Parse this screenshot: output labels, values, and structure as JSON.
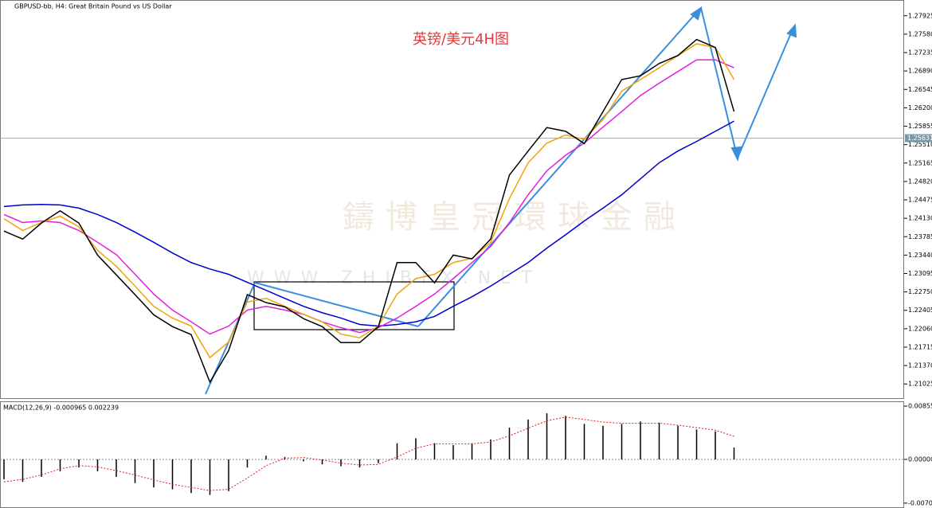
{
  "chart_data": [
    {
      "type": "line",
      "title": "GBPUSD-bb, H4:  Great Britain Pound vs US Dollar",
      "annotation": "英镑/美元4H图",
      "watermark": "鑄博皇冠環球金融",
      "watermark_url": "WWW.ZHIBFX.NET",
      "last_price": 1.25631,
      "categories": [
        null,
        null,
        null,
        null,
        null,
        null,
        null,
        null,
        null,
        null,
        null,
        null,
        null,
        null,
        null,
        null,
        null,
        null,
        null,
        null,
        null,
        null,
        null,
        null,
        null,
        null,
        null,
        null,
        null,
        null,
        null,
        null,
        null,
        null,
        null,
        null,
        null,
        null,
        null,
        null
      ],
      "series": [
        {
          "color": "#0000cc",
          "values": [
            1.2435,
            1.2438,
            1.2439,
            1.2438,
            1.2432,
            1.242,
            1.2405,
            1.2387,
            1.2368,
            1.2348,
            1.233,
            1.2318,
            1.2308,
            1.2293,
            1.2278,
            1.2263,
            1.2248,
            1.2236,
            1.2226,
            1.2214,
            1.2211,
            1.2214,
            1.2219,
            1.2229,
            1.2248,
            1.2266,
            1.2286,
            1.2308,
            1.233,
            1.2357,
            1.2382,
            1.2408,
            1.2432,
            1.2457,
            1.2487,
            1.2517,
            1.2539,
            1.2557,
            1.2576,
            1.2595
          ]
        },
        {
          "color": "#e020e0",
          "values": [
            1.242,
            1.2405,
            1.2408,
            1.2405,
            1.239,
            1.2368,
            1.2345,
            1.2308,
            1.2271,
            1.2241,
            1.2219,
            1.2196,
            1.2211,
            1.2241,
            1.2248,
            1.2241,
            1.2233,
            1.2219,
            1.2208,
            1.2199,
            1.2208,
            1.2226,
            1.2248,
            1.2271,
            1.23,
            1.233,
            1.236,
            1.2405,
            1.2457,
            1.2502,
            1.2531,
            1.2554,
            1.2584,
            1.2613,
            1.2643,
            1.2666,
            1.2688,
            1.271,
            1.271,
            1.2695
          ]
        },
        {
          "color": "#f0a30a",
          "values": [
            1.2412,
            1.239,
            1.2405,
            1.2417,
            1.2397,
            1.2353,
            1.2323,
            1.2286,
            1.2248,
            1.2226,
            1.2211,
            1.2152,
            1.2181,
            1.2256,
            1.2263,
            1.2248,
            1.2233,
            1.2219,
            1.2196,
            1.2189,
            1.2211,
            1.2271,
            1.23,
            1.2308,
            1.233,
            1.2338,
            1.2368,
            1.245,
            1.2517,
            1.2554,
            1.2569,
            1.2561,
            1.2598,
            1.2651,
            1.2673,
            1.2695,
            1.2718,
            1.274,
            1.2733,
            1.2673
          ]
        },
        {
          "color": "#000000",
          "values": [
            1.2389,
            1.2374,
            1.2404,
            1.2427,
            1.2404,
            1.2344,
            1.2307,
            1.227,
            1.2232,
            1.221,
            1.2195,
            1.2106,
            1.2165,
            1.227,
            1.2255,
            1.2247,
            1.2225,
            1.221,
            1.218,
            1.218,
            1.221,
            1.233,
            1.233,
            1.2292,
            1.2344,
            1.2337,
            1.2374,
            1.2494,
            1.2539,
            1.2583,
            1.2576,
            1.2553,
            1.2613,
            1.2673,
            1.268,
            1.2703,
            1.2718,
            1.2748,
            1.2733,
            1.2613
          ]
        }
      ],
      "ylim": [
        1.2076,
        1.2822
      ],
      "yticks": [
        1.27925,
        {
          "value": 1.2758,
          "label": "1.27580"
        },
        1.27235,
        {
          "value": 1.2689,
          "label": "1.26890"
        },
        1.26545,
        {
          "value": 1.262,
          "label": "1.26200"
        },
        1.25855,
        {
          "value": 1.2551,
          "label": "1.25510"
        },
        1.25165,
        {
          "value": 1.2482,
          "label": "1.24820"
        },
        1.24475,
        {
          "value": 1.2413,
          "label": "1.24130"
        },
        1.23785,
        {
          "value": 1.2344,
          "label": "1.23440"
        },
        1.23095,
        {
          "value": 1.2275,
          "label": "1.22750"
        },
        1.22405,
        {
          "value": 1.2206,
          "label": "1.22060"
        },
        1.21715,
        {
          "value": 1.2137,
          "label": "1.21370"
        },
        1.21025
      ]
    },
    {
      "type": "bar",
      "title": "MACD(12,26,9) -0.000965 0.002239",
      "series": [
        {
          "color": "#000000",
          "values": [
            -0.0032,
            -0.0036,
            -0.0028,
            -0.0019,
            -0.0013,
            -0.0019,
            -0.0028,
            -0.0038,
            -0.0045,
            -0.0048,
            -0.0054,
            -0.0057,
            -0.0051,
            -0.0013,
            0.0006,
            0.0004,
            -0.0003,
            -0.0008,
            -0.0011,
            -0.0013,
            -0.0006,
            0.0026,
            0.0034,
            0.0026,
            0.0023,
            0.0026,
            0.0032,
            0.0051,
            0.0064,
            0.0074,
            0.007,
            0.0057,
            0.0054,
            0.0057,
            0.0061,
            0.0059,
            0.0054,
            0.0048,
            0.0045,
            0.0019
          ]
        },
        {
          "color": "#e02020",
          "style": "dotted",
          "values": [
            -0.0036,
            -0.0032,
            -0.0025,
            -0.0015,
            -0.001,
            -0.0012,
            -0.0018,
            -0.0025,
            -0.0033,
            -0.004,
            -0.0045,
            -0.005,
            -0.0048,
            -0.003,
            -0.001,
            0.0002,
            0.0003,
            -0.0001,
            -0.0006,
            -0.0009,
            -0.0008,
            0.0004,
            0.0018,
            0.0025,
            0.0025,
            0.0025,
            0.0028,
            0.0038,
            0.005,
            0.0062,
            0.0068,
            0.0064,
            0.006,
            0.0058,
            0.0058,
            0.0058,
            0.0055,
            0.0051,
            0.0047,
            0.0037
          ]
        }
      ],
      "ylim": [
        -0.0078,
        0.0092
      ],
      "yticks": [
        {
          "value": 0.00855,
          "label": "0.008550"
        },
        {
          "value": 0,
          "label": "0.000000"
        },
        {
          "value": -0.007018,
          "label": "-0.007018"
        }
      ]
    }
  ]
}
